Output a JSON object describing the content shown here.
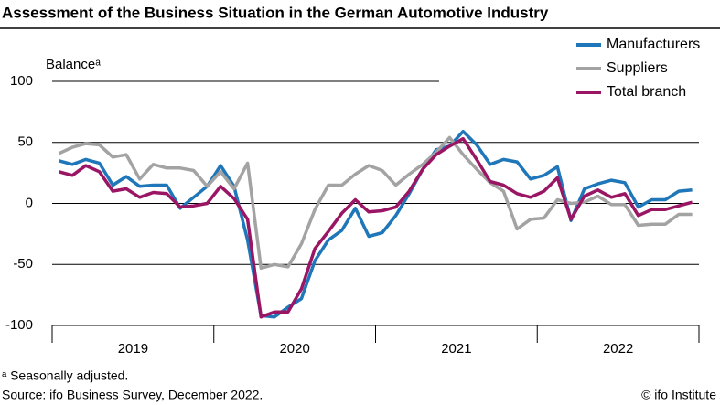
{
  "chart_data": {
    "type": "line",
    "title": "Assessment of the Business Situation in the German Automotive Industry",
    "y_label": "Balanceᵃ",
    "footnote": "ᵃ Seasonally adjusted.",
    "source": "Source: ifo Business Survey, December 2022.",
    "credit": "© ifo Institute",
    "categories": [
      null,
      null,
      null,
      null,
      null,
      null,
      "2019",
      null,
      null,
      null,
      null,
      null,
      null,
      null,
      null,
      null,
      null,
      null,
      "2020",
      null,
      null,
      null,
      null,
      null,
      null,
      null,
      null,
      null,
      null,
      null,
      "2021",
      null,
      null,
      null,
      null,
      null,
      null,
      null,
      null,
      null,
      null,
      null,
      "2022",
      null,
      null,
      null,
      null,
      null
    ],
    "ylim": [
      -100,
      100
    ],
    "yticks": [
      -100,
      -50,
      0,
      50,
      100
    ],
    "grid": true,
    "legend": "top-right",
    "series": [
      {
        "name": "Manufacturers",
        "color": "#1f77b9",
        "values": [
          35,
          32,
          36,
          33,
          15,
          22,
          14,
          15,
          15,
          -4,
          5,
          14,
          31,
          14,
          -30,
          -92,
          -93,
          -85,
          -78,
          -47,
          -30,
          -22,
          -4,
          -27,
          -24,
          -10,
          8,
          28,
          44,
          47,
          59,
          48,
          32,
          36,
          34,
          20,
          23,
          30,
          -14,
          12,
          16,
          19,
          17,
          -3,
          3,
          3,
          10,
          11
        ]
      },
      {
        "name": "Suppliers",
        "color": "#a3a3a3",
        "values": [
          41,
          46,
          49,
          48,
          38,
          40,
          20,
          32,
          29,
          29,
          27,
          14,
          26,
          12,
          33,
          -53,
          -50,
          -52,
          -33,
          -5,
          15,
          15,
          24,
          31,
          27,
          15,
          24,
          32,
          42,
          54,
          40,
          28,
          17,
          10,
          -21,
          -13,
          -12,
          3,
          0,
          1,
          6,
          -1,
          -1,
          -18,
          -17,
          -17,
          -9,
          -9
        ]
      },
      {
        "name": "Total branch",
        "color": "#9a1665",
        "values": [
          26,
          23,
          31,
          26,
          10,
          12,
          5,
          9,
          8,
          -3,
          -2,
          0,
          14,
          4,
          -13,
          -93,
          -89,
          -89,
          -70,
          -37,
          -23,
          -8,
          3,
          -7,
          -6,
          -3,
          10,
          28,
          40,
          47,
          53,
          36,
          18,
          15,
          8,
          5,
          10,
          21,
          -13,
          6,
          11,
          5,
          8,
          -10,
          -5,
          -5,
          -2,
          1
        ]
      }
    ]
  }
}
